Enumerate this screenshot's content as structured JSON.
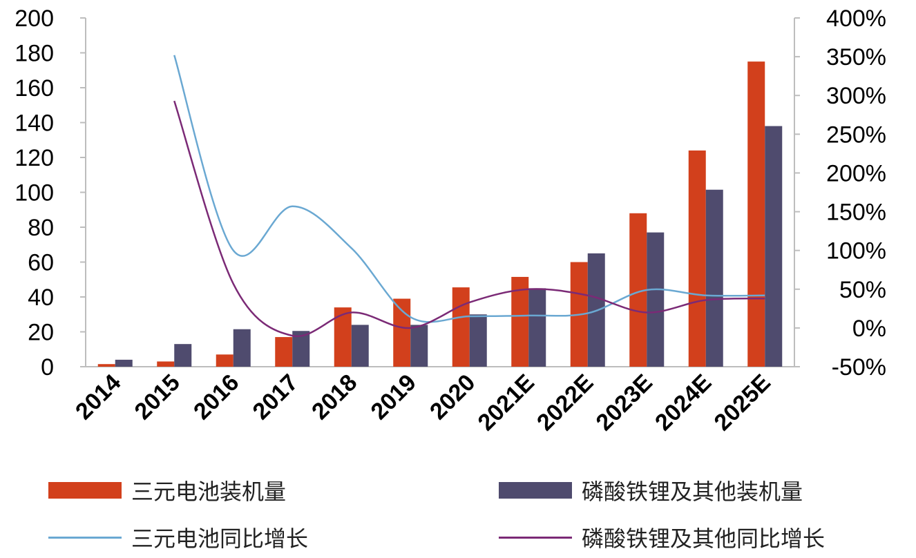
{
  "chart_data": {
    "type": "bar",
    "categories": [
      "2014",
      "2015",
      "2016",
      "2017",
      "2018",
      "2019",
      "2020",
      "2021E",
      "2022E",
      "2023E",
      "2024E",
      "2025E"
    ],
    "series": [
      {
        "name": "三元电池装机量",
        "type": "bar",
        "axis": "left",
        "color": "#d2401c",
        "values": [
          1.5,
          3,
          7,
          17,
          34,
          39,
          45.5,
          51.5,
          60,
          88,
          124,
          175
        ]
      },
      {
        "name": "磷酸铁锂及其他装机量",
        "type": "bar",
        "axis": "left",
        "color": "#4f4b6e",
        "values": [
          4,
          13,
          21.5,
          20.5,
          24,
          24,
          30,
          45,
          65,
          77,
          101.5,
          138
        ]
      },
      {
        "name": "三元电池同比增长",
        "type": "line",
        "axis": "right",
        "color": "#6aa8d2",
        "values": [
          null,
          352,
          100,
          157,
          103,
          14,
          15,
          16,
          19,
          49,
          42,
          42
        ]
      },
      {
        "name": "磷酸铁锂及其他同比增长",
        "type": "line",
        "axis": "right",
        "color": "#7b2a76",
        "values": [
          null,
          293,
          57,
          -10,
          20,
          0,
          33,
          50,
          42,
          20,
          36,
          38
        ]
      }
    ],
    "y_left": {
      "min": 0,
      "max": 200,
      "ticks": [
        "0",
        "20",
        "40",
        "60",
        "80",
        "100",
        "120",
        "140",
        "160",
        "180",
        "200"
      ]
    },
    "y_right": {
      "min": -50,
      "max": 400,
      "ticks": [
        "-50%",
        "0%",
        "50%",
        "100%",
        "150%",
        "200%",
        "250%",
        "300%",
        "350%",
        "400%"
      ]
    },
    "grid": false,
    "legend_position": "bottom"
  }
}
